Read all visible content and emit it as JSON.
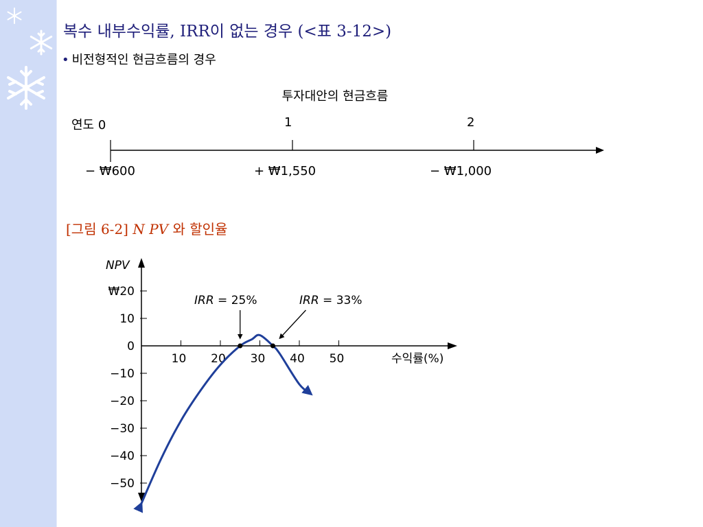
{
  "slide": {
    "title": "복수 내부수익률, IRR이 없는 경우 (<표 3-12>)",
    "bullet": "비전형적인 현금흐름의 경우"
  },
  "cashflow": {
    "title": "투자대안의 현금흐름",
    "year_label": "연도 0",
    "years": [
      "1",
      "2"
    ],
    "amounts": [
      "− ₩600",
      "+ ₩1,550",
      "− ₩1,000"
    ]
  },
  "figure": {
    "caption_prefix": "[그림 6-2]",
    "caption_npv": "N PV",
    "caption_suffix": "와 할인율"
  },
  "chart_data": {
    "type": "line",
    "ylabel": "NPV",
    "xlabel": "수익률(%)",
    "y_tick_labels": [
      "₩20",
      "10",
      "0",
      "−10",
      "−20",
      "−30",
      "−40",
      "−50"
    ],
    "y_ticks": [
      20,
      10,
      0,
      -10,
      -20,
      -30,
      -40,
      -50
    ],
    "x_tick_labels": [
      "10",
      "20",
      "30",
      "40",
      "50"
    ],
    "x_ticks": [
      10,
      20,
      30,
      40,
      50
    ],
    "series": [
      {
        "x": [
          0,
          5,
          10,
          15,
          20,
          25,
          28,
          30,
          33.3,
          35,
          40,
          43
        ],
        "y": [
          -57.4,
          -41.1,
          -27.3,
          -16.2,
          -6.9,
          0,
          2.4,
          3.9,
          0,
          -2.8,
          -14.0,
          -17.6
        ],
        "color": "#1f3f9a"
      }
    ],
    "annotations": [
      {
        "label_italic": "IRR",
        "label_rest": " = 25%",
        "x": 25,
        "y": 0
      },
      {
        "label_italic": "IRR",
        "label_rest": " = 33%",
        "x": 33.3,
        "y": 0
      }
    ]
  }
}
